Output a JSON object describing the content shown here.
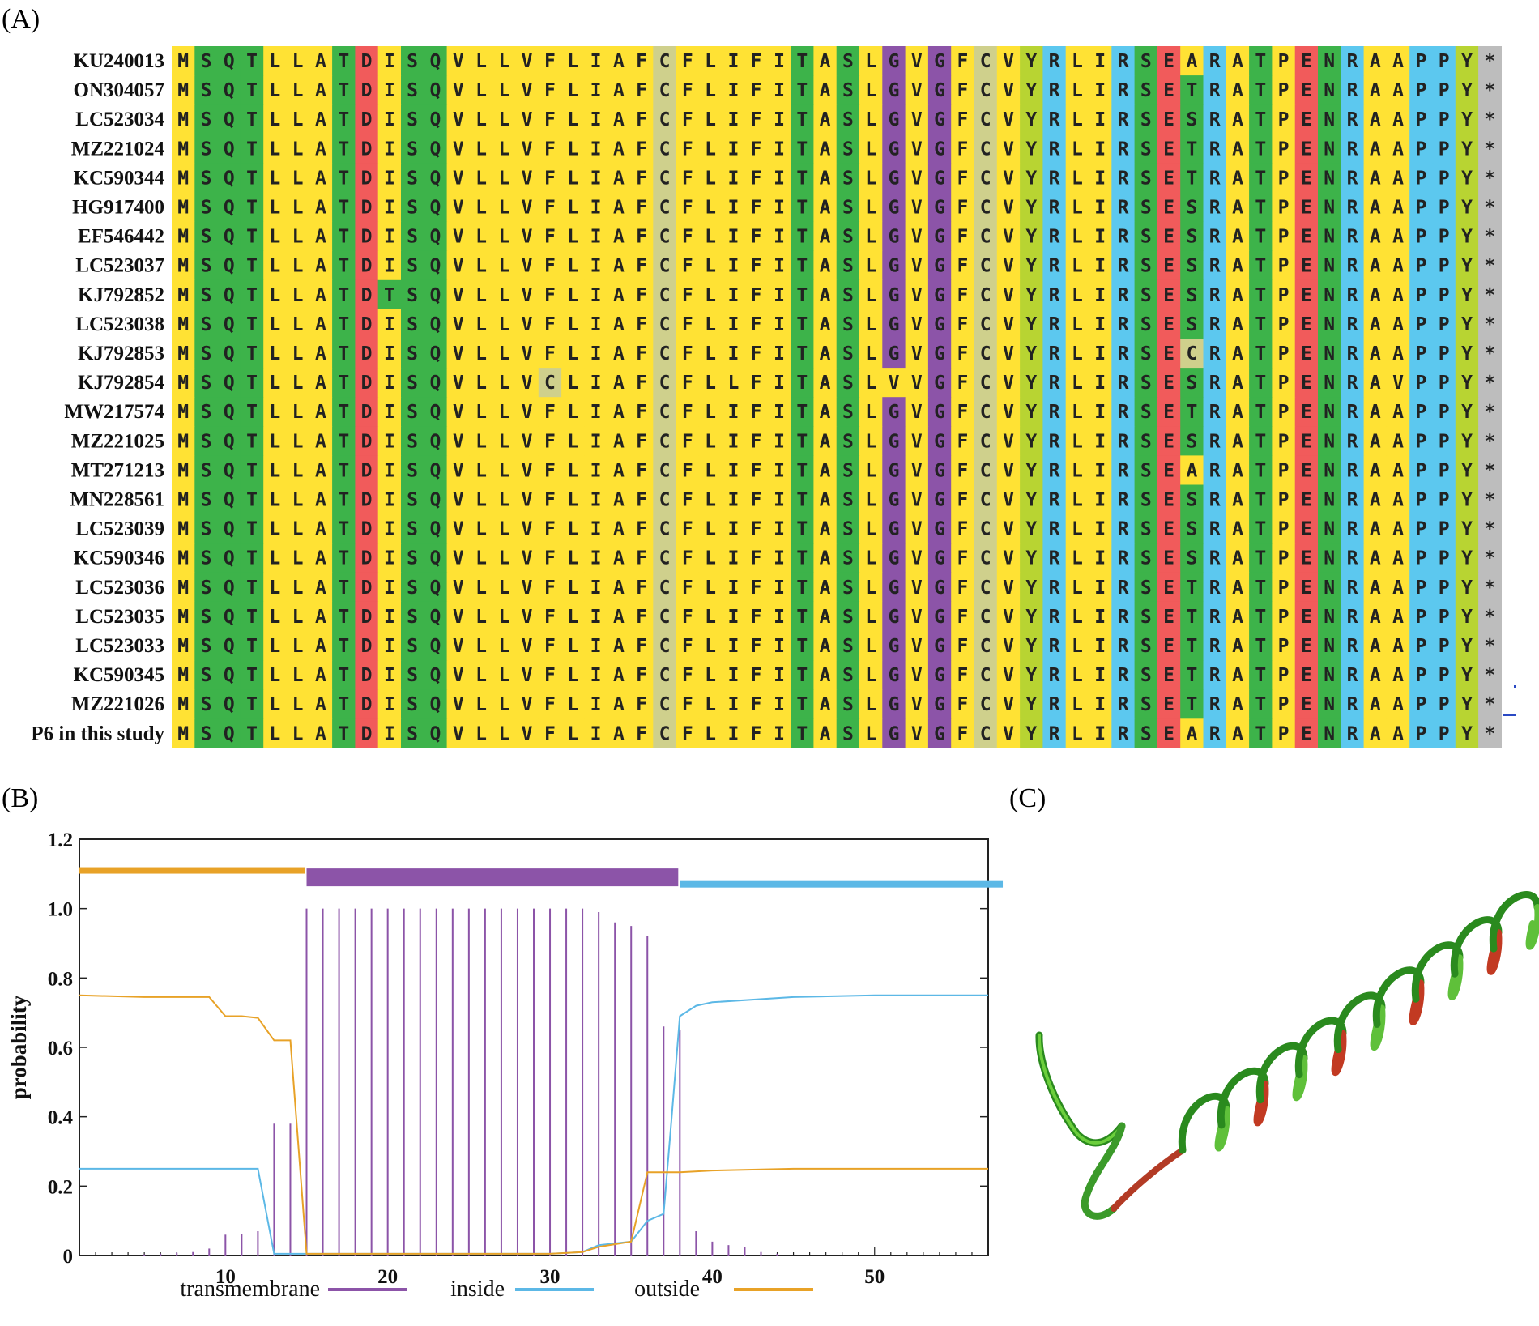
{
  "panels": {
    "a": "(A)",
    "b": "(B)",
    "c": "(C)"
  },
  "alignment": {
    "names": [
      "KU240013",
      "ON304057",
      "LC523034",
      "MZ221024",
      "KC590344",
      "HG917400",
      "EF546442",
      "LC523037",
      "KJ792852",
      "LC523038",
      "KJ792853",
      "KJ792854",
      "MW217574",
      "MZ221025",
      "MT271213",
      "MN228561",
      "LC523039",
      "KC590346",
      "LC523036",
      "LC523035",
      "LC523033",
      "KC590345",
      "MZ221026",
      "P6 in this study"
    ],
    "sequences": [
      "MSQTLLATDISQVLLVFLIAFCFLIFITASLGVGFCVYRLIRSEARATPENRAAPPY*",
      "MSQTLLATDISQVLLVFLIAFCFLIFITASLGVGFCVYRLIRSETRATPENRAAPPY*",
      "MSQTLLATDISQVLLVFLIAFCFLIFITASLGVGFCVYRLIRSESRATPENRAAPPY*",
      "MSQTLLATDISQVLLVFLIAFCFLIFITASLGVGFCVYRLIRSETRATPENRAAPPY*",
      "MSQTLLATDISQVLLVFLIAFCFLIFITASLGVGFCVYRLIRSETRATPENRAAPPY*",
      "MSQTLLATDISQVLLVFLIAFCFLIFITASLGVGFCVYRLIRSESRATPENRAAPPY*",
      "MSQTLLATDISQVLLVFLIAFCFLIFITASLGVGFCVYRLIRSESRATPENRAAPPY*",
      "MSQTLLATDISQVLLVFLIAFCFLIFITASLGVGFCVYRLIRSESRATPENRAAPPY*",
      "MSQTLLATDTSQVLLVFLIAFCFLIFITASLGVGFCVYRLIRSESRATPENRAAPPY*",
      "MSQTLLATDISQVLLVFLIAFCFLIFITASLGVGFCVYRLIRSESRATPENRAAPPY*",
      "MSQTLLATDISQVLLVFLIAFCFLIFITASLGVGFCVYRLIRSECRATPENRAAPPY*",
      "MSQTLLATDISQVLLVCLIAFCFLLFITASLVVGFCVYRLIRSESRATPENRAVPPY*",
      "MSQTLLATDISQVLLVFLIAFCFLIFITASLGVGFCVYRLIRSETRATPENRAAPPY*",
      "MSQTLLATDISQVLLVFLIAFCFLIFITASLGVGFCVYRLIRSESRATPENRAAPPY*",
      "MSQTLLATDISQVLLVFLIAFCFLIFITASLGVGFCVYRLIRSEARATPENRAAPPY*",
      "MSQTLLATDISQVLLVFLIAFCFLIFITASLGVGFCVYRLIRSESRATPENRAAPPY*",
      "MSQTLLATDISQVLLVFLIAFCFLIFITASLGVGFCVYRLIRSESRATPENRAAPPY*",
      "MSQTLLATDISQVLLVFLIAFCFLIFITASLGVGFCVYRLIRSESRATPENRAAPPY*",
      "MSQTLLATDISQVLLVFLIAFCFLIFITASLGVGFCVYRLIRSETRATPENRAAPPY*",
      "MSQTLLATDISQVLLVFLIAFCFLIFITASLGVGFCVYRLIRSETRATPENRAAPPY*",
      "MSQTLLATDISQVLLVFLIAFCFLIFITASLGVGFCVYRLIRSETRATPENRAAPPY*",
      "MSQTLLATDISQVLLVFLIAFCFLIFITASLGVGFCVYRLIRSETRATPENRAAPPY*",
      "MSQTLLATDISQVLLVFLIAFCFLIFITASLGVGFCVYRLIRSETRATPENRAAPPY*",
      "MSQTLLATDISQVLLVFLIAFCFLIFITASLGVGFCVYRLIRSEARATPENRAAPPY*"
    ],
    "colors": {
      "A": "#ffe234",
      "V": "#ffe234",
      "L": "#ffe234",
      "I": "#ffe234",
      "M": "#ffe234",
      "F": "#ffe234",
      "W": "#ffe234",
      "S": "#3db34a",
      "T": "#3db34a",
      "Q": "#3db34a",
      "N": "#3db34a",
      "D": "#f15b5b",
      "E": "#f15b5b",
      "K": "#5cc8ef",
      "R": "#5cc8ef",
      "H": "#5cc8ef",
      "G": "#8c54a8",
      "P": "#ffe234",
      "C": "#cfd08c",
      "Y": "#b8d432",
      "*": "#bdbdbd"
    },
    "column_overrides": {
      "49": "#5cc8ef",
      "54": "#5cc8ef",
      "55": "#5cc8ef"
    }
  },
  "chart_data": {
    "type": "line",
    "ylabel": "probability",
    "xlabel": "",
    "xlim": [
      1,
      57
    ],
    "ylim": [
      0,
      1.2
    ],
    "xticks": [
      10,
      20,
      30,
      40,
      50
    ],
    "yticks": [
      {
        "v": 0,
        "label": "0"
      },
      {
        "v": 0.2,
        "label": "0.2"
      },
      {
        "v": 0.4,
        "label": "0.4"
      },
      {
        "v": 0.6,
        "label": "0.6"
      },
      {
        "v": 0.8,
        "label": "0.8"
      },
      {
        "v": 1.0,
        "label": "1.0"
      },
      {
        "v": 1.2,
        "label": "1.2"
      }
    ],
    "topology": [
      {
        "type": "outside",
        "start": 1,
        "end": 14,
        "y": 1.11
      },
      {
        "type": "transmembrane",
        "start": 15,
        "end": 37,
        "y": 1.09
      },
      {
        "type": "inside",
        "start": 38,
        "end": 57,
        "y": 1.07
      }
    ],
    "series": [
      {
        "name": "transmembrane",
        "color": "#8c54a8",
        "kind": "impulse",
        "x": [
          1,
          2,
          3,
          4,
          5,
          6,
          7,
          8,
          9,
          10,
          11,
          12,
          13,
          14,
          15,
          16,
          17,
          18,
          19,
          20,
          21,
          22,
          23,
          24,
          25,
          26,
          27,
          28,
          29,
          30,
          31,
          32,
          33,
          34,
          35,
          36,
          37,
          38,
          39,
          40,
          41,
          42,
          43,
          44,
          45
        ],
        "values": [
          0.001,
          0.001,
          0.002,
          0.002,
          0.003,
          0.005,
          0.008,
          0.01,
          0.02,
          0.06,
          0.062,
          0.07,
          0.38,
          0.38,
          1.0,
          1.0,
          1.0,
          1.0,
          1.0,
          1.0,
          1.0,
          1.0,
          1.0,
          1.0,
          1.0,
          1.0,
          1.0,
          1.0,
          1.0,
          1.0,
          1.0,
          1.0,
          0.99,
          0.96,
          0.95,
          0.92,
          0.66,
          0.65,
          0.07,
          0.04,
          0.03,
          0.025,
          0.01,
          0.005,
          0.002
        ]
      },
      {
        "name": "inside",
        "color": "#5cb8e6",
        "kind": "line",
        "x": [
          1,
          5,
          9,
          11,
          12,
          13,
          14,
          15,
          20,
          25,
          30,
          32,
          33,
          35,
          36,
          37,
          37.5,
          38,
          39,
          40,
          45,
          50,
          57
        ],
        "values": [
          0.25,
          0.25,
          0.25,
          0.25,
          0.25,
          0.005,
          0.005,
          0.005,
          0.005,
          0.005,
          0.005,
          0.01,
          0.03,
          0.04,
          0.1,
          0.12,
          0.4,
          0.69,
          0.72,
          0.73,
          0.745,
          0.75,
          0.75
        ]
      },
      {
        "name": "outside",
        "color": "#e8a227",
        "kind": "line",
        "x": [
          1,
          5,
          9,
          10,
          11,
          12,
          13,
          14,
          15,
          20,
          25,
          30,
          32,
          33,
          35,
          36,
          37,
          38,
          40,
          45,
          50,
          57
        ],
        "values": [
          0.75,
          0.745,
          0.745,
          0.69,
          0.69,
          0.685,
          0.62,
          0.62,
          0.005,
          0.005,
          0.005,
          0.005,
          0.01,
          0.025,
          0.04,
          0.24,
          0.24,
          0.24,
          0.245,
          0.25,
          0.25,
          0.25
        ]
      }
    ],
    "legend": [
      {
        "label": "transmembrane",
        "color": "#8c54a8"
      },
      {
        "label": "inside",
        "color": "#5cb8e6"
      },
      {
        "label": "outside",
        "color": "#e8a227"
      }
    ]
  }
}
